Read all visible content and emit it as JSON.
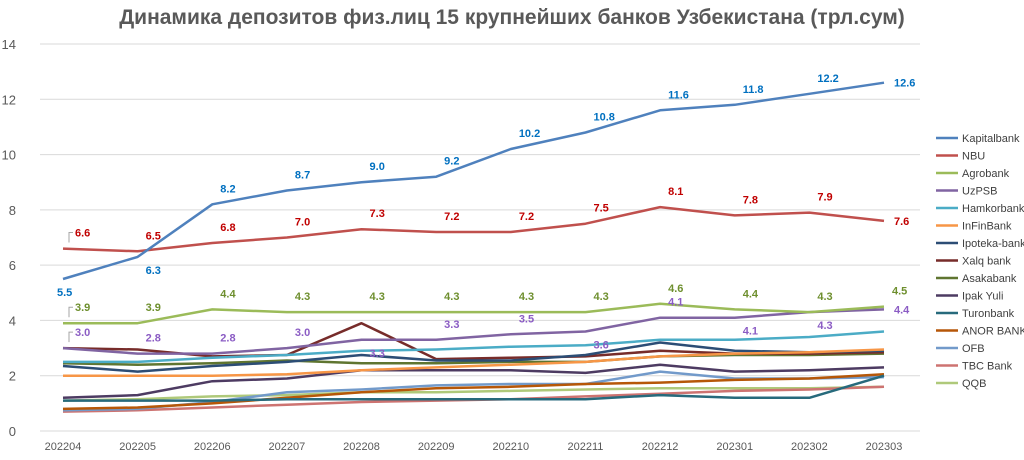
{
  "chart_data": {
    "type": "line",
    "title": "Динамика депозитов физ.лиц 15 крупнейших банков Узбекистана (трл.сум)",
    "xlabel": "",
    "ylabel": "",
    "ylim": [
      0,
      14
    ],
    "yticks": [
      "0",
      "2",
      "4",
      "6",
      "8",
      "10",
      "12",
      "14"
    ],
    "grid": true,
    "legend_position": "right",
    "x": [
      "202204",
      "202205",
      "202206",
      "202207",
      "202208",
      "202209",
      "202210",
      "202211",
      "202212",
      "202301",
      "202302",
      "202303"
    ],
    "series": [
      {
        "name": "Kapitalbank",
        "color": "#4F81BD",
        "labeled": true,
        "label_color": "#0070C0",
        "values": [
          5.5,
          6.3,
          8.2,
          8.7,
          9.0,
          9.2,
          10.2,
          10.8,
          11.6,
          11.8,
          12.2,
          12.6
        ]
      },
      {
        "name": "NBU",
        "color": "#C0504D",
        "labeled": true,
        "label_color": "#C00000",
        "values": [
          6.6,
          6.5,
          6.8,
          7.0,
          7.3,
          7.2,
          7.2,
          7.5,
          8.1,
          7.8,
          7.9,
          7.6
        ]
      },
      {
        "name": "Agrobank",
        "color": "#9BBB59",
        "labeled": true,
        "label_color": "#6E8F2E",
        "values": [
          3.9,
          3.9,
          4.4,
          4.3,
          4.3,
          4.3,
          4.3,
          4.3,
          4.6,
          4.4,
          4.3,
          4.5
        ]
      },
      {
        "name": "UzPSB",
        "color": "#8064A2",
        "labeled": true,
        "label_color": "#8B5CC4",
        "values": [
          3.0,
          2.8,
          2.8,
          3.0,
          3.3,
          3.3,
          3.5,
          3.6,
          4.1,
          4.1,
          4.3,
          4.4
        ]
      },
      {
        "name": "Hamkorbank",
        "color": "#4BACC6",
        "values": [
          2.5,
          2.5,
          2.65,
          2.75,
          2.9,
          2.95,
          3.05,
          3.1,
          3.3,
          3.3,
          3.4,
          3.6
        ]
      },
      {
        "name": "InFinBank",
        "color": "#F79646",
        "values": [
          2.0,
          2.0,
          2.0,
          2.05,
          2.2,
          2.3,
          2.4,
          2.5,
          2.7,
          2.8,
          2.85,
          2.95
        ]
      },
      {
        "name": "Ipoteka-bank",
        "color": "#2C4D75",
        "values": [
          2.35,
          2.15,
          2.35,
          2.5,
          2.75,
          2.55,
          2.55,
          2.75,
          3.2,
          2.9,
          2.85,
          2.9
        ]
      },
      {
        "name": "Xalq bank",
        "color": "#772C2A",
        "values": [
          3.0,
          2.95,
          2.7,
          2.75,
          3.9,
          2.6,
          2.65,
          2.7,
          2.9,
          2.8,
          2.8,
          2.85
        ]
      },
      {
        "name": "Asakabank",
        "color": "#5F7530",
        "values": [
          2.45,
          2.4,
          2.45,
          2.55,
          2.45,
          2.45,
          2.5,
          2.5,
          2.7,
          2.75,
          2.75,
          2.8
        ]
      },
      {
        "name": "Ipak Yuli",
        "color": "#4D3B62",
        "values": [
          1.2,
          1.3,
          1.8,
          1.9,
          2.2,
          2.2,
          2.2,
          2.1,
          2.4,
          2.15,
          2.2,
          2.3
        ]
      },
      {
        "name": "Turonbank",
        "color": "#276A7C",
        "values": [
          1.1,
          1.1,
          1.1,
          1.15,
          1.15,
          1.15,
          1.15,
          1.15,
          1.3,
          1.2,
          1.2,
          2.0
        ]
      },
      {
        "name": "ANOR BANK",
        "color": "#B65708",
        "values": [
          0.8,
          0.85,
          1.0,
          1.2,
          1.4,
          1.55,
          1.6,
          1.7,
          1.75,
          1.85,
          1.9,
          2.05
        ]
      },
      {
        "name": "OFB",
        "color": "#729ACA",
        "values": [
          0.75,
          0.8,
          1.05,
          1.4,
          1.5,
          1.65,
          1.7,
          1.7,
          2.15,
          1.9,
          1.9,
          1.95
        ]
      },
      {
        "name": "TBC Bank",
        "color": "#CD7371",
        "values": [
          0.7,
          0.75,
          0.85,
          0.95,
          1.05,
          1.1,
          1.15,
          1.25,
          1.35,
          1.45,
          1.5,
          1.6
        ]
      },
      {
        "name": "QQB",
        "color": "#AFC97A",
        "values": [
          1.1,
          1.15,
          1.25,
          1.3,
          1.4,
          1.4,
          1.45,
          1.5,
          1.55,
          1.55,
          1.55,
          1.6
        ]
      }
    ]
  }
}
